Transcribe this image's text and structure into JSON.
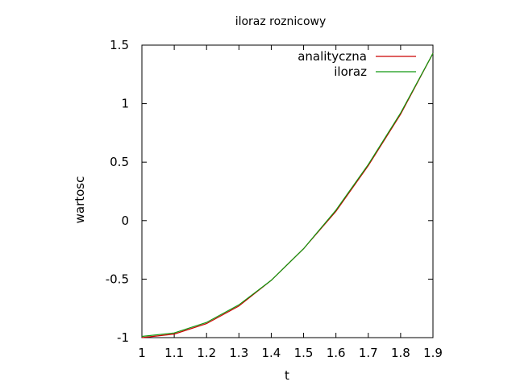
{
  "chart_data": {
    "type": "line",
    "title": "iloraz roznicowy",
    "xlabel": "t",
    "ylabel": "wartosc",
    "xlim": [
      1,
      1.9
    ],
    "ylim": [
      -1,
      1.5
    ],
    "x_ticks": [
      1,
      1.1,
      1.2,
      1.3,
      1.4,
      1.5,
      1.6,
      1.7,
      1.8,
      1.9
    ],
    "x_tick_labels": [
      "1",
      "1.1",
      "1.2",
      "1.3",
      "1.4",
      "1.5",
      "1.6",
      "1.7",
      "1.8",
      "1.9"
    ],
    "y_ticks": [
      -1,
      -0.5,
      0,
      0.5,
      1,
      1.5
    ],
    "y_tick_labels": [
      "-1",
      "-0.5",
      "0",
      "0.5",
      "1",
      "1.5"
    ],
    "grid": false,
    "legend_position": "top-right",
    "x": [
      1,
      1.1,
      1.2,
      1.3,
      1.4,
      1.5,
      1.6,
      1.7,
      1.8,
      1.9
    ],
    "series": [
      {
        "name": "analityczna",
        "color": "#cc0000",
        "values": [
          -1.0,
          -0.97,
          -0.88,
          -0.73,
          -0.51,
          -0.24,
          0.08,
          0.47,
          0.91,
          1.43
        ]
      },
      {
        "name": "iloraz",
        "color": "#119911",
        "values": [
          -0.99,
          -0.96,
          -0.87,
          -0.72,
          -0.51,
          -0.24,
          0.09,
          0.48,
          0.92,
          1.43
        ]
      }
    ]
  }
}
